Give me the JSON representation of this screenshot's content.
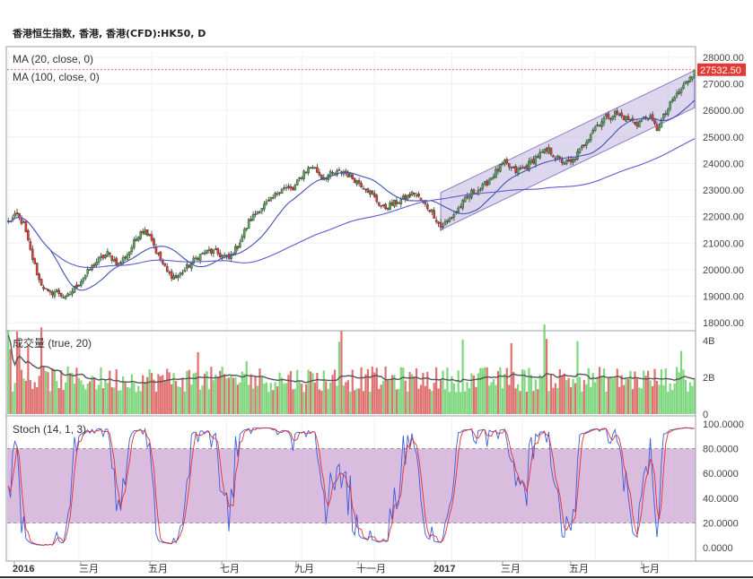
{
  "title": "香港恒生指数, 香港, 香港(CFD):HK50, D",
  "colors": {
    "up": "#4caf50",
    "down": "#e53935",
    "vol_up": "#7ed67e",
    "vol_down": "#e07070",
    "ma20": "#3f51b5",
    "ma100": "#5c5ccf",
    "channel": "#b3a6d9",
    "channel_edge": "#8e7cc3",
    "stoch_k": "#3b5bdb",
    "stoch_d": "#e03131",
    "stoch_band": "#d4b0d9",
    "vol_ma": "#555555",
    "price_tag_bg": "#e53935",
    "price_line": "#e53935"
  },
  "indicators": {
    "ma20": "MA (20, close, 0)",
    "ma100": "MA (100, close, 0)",
    "volume": "成交量 (true, 20)",
    "stoch": "Stoch (14, 1, 3)"
  },
  "last_price": "27532.50",
  "price_axis": [
    "28000.00",
    "27000.00",
    "26000.00",
    "25000.00",
    "24000.00",
    "23000.00",
    "22000.00",
    "21000.00",
    "20000.00",
    "19000.00",
    "18000.00"
  ],
  "volume_axis": [
    "4B",
    "2B",
    "0"
  ],
  "stoch_axis": [
    "100.0000",
    "80.0000",
    "60.0000",
    "40.0000",
    "20.0000",
    "0.0000"
  ],
  "x_axis": [
    {
      "label": "2016",
      "bold": true
    },
    {
      "label": "三月",
      "bold": false
    },
    {
      "label": "五月",
      "bold": false
    },
    {
      "label": "七月",
      "bold": false
    },
    {
      "label": "九月",
      "bold": false
    },
    {
      "label": "十一月",
      "bold": false
    },
    {
      "label": "2017",
      "bold": true
    },
    {
      "label": "三月",
      "bold": false
    },
    {
      "label": "五月",
      "bold": false
    },
    {
      "label": "七月",
      "bold": false
    }
  ],
  "chart_data": [
    {
      "type": "candlestick",
      "ylim": [
        17700,
        28200
      ],
      "close_anchors": [
        [
          0,
          21800
        ],
        [
          4,
          22050
        ],
        [
          7,
          21700
        ],
        [
          10,
          20700
        ],
        [
          14,
          19600
        ],
        [
          18,
          19100
        ],
        [
          22,
          19200
        ],
        [
          26,
          18900
        ],
        [
          30,
          19300
        ],
        [
          35,
          19800
        ],
        [
          40,
          20300
        ],
        [
          45,
          20600
        ],
        [
          50,
          20200
        ],
        [
          55,
          20700
        ],
        [
          60,
          21500
        ],
        [
          64,
          21400
        ],
        [
          67,
          20700
        ],
        [
          72,
          19900
        ],
        [
          76,
          19700
        ],
        [
          80,
          20000
        ],
        [
          86,
          20500
        ],
        [
          91,
          20700
        ],
        [
          95,
          20600
        ],
        [
          100,
          20400
        ],
        [
          104,
          20900
        ],
        [
          109,
          21800
        ],
        [
          114,
          22300
        ],
        [
          119,
          22600
        ],
        [
          124,
          23100
        ],
        [
          129,
          23000
        ],
        [
          134,
          23700
        ],
        [
          138,
          23900
        ],
        [
          142,
          23500
        ],
        [
          147,
          23600
        ],
        [
          152,
          23700
        ],
        [
          157,
          23400
        ],
        [
          162,
          23100
        ],
        [
          166,
          22700
        ],
        [
          170,
          22300
        ],
        [
          175,
          22500
        ],
        [
          180,
          22700
        ],
        [
          184,
          22900
        ],
        [
          188,
          22500
        ],
        [
          192,
          22200
        ],
        [
          196,
          21600
        ],
        [
          200,
          21900
        ],
        [
          205,
          22400
        ],
        [
          210,
          22900
        ],
        [
          215,
          23100
        ],
        [
          220,
          23600
        ],
        [
          225,
          24000
        ],
        [
          230,
          23700
        ],
        [
          235,
          23900
        ],
        [
          240,
          24300
        ],
        [
          245,
          24500
        ],
        [
          250,
          24100
        ],
        [
          255,
          24000
        ],
        [
          260,
          24600
        ],
        [
          265,
          25300
        ],
        [
          270,
          25700
        ],
        [
          275,
          25900
        ],
        [
          280,
          25700
        ],
        [
          285,
          25500
        ],
        [
          290,
          25800
        ],
        [
          294,
          25300
        ],
        [
          298,
          25900
        ],
        [
          302,
          26500
        ],
        [
          306,
          26900
        ],
        [
          309,
          27300
        ],
        [
          311,
          27500
        ]
      ],
      "ma20": "MA (20, close, 0)",
      "ma100": "MA (100, close, 0)",
      "channel": {
        "lower_start": [
          196,
          21500
        ],
        "lower_end": [
          311,
          26100
        ],
        "upper_start": [
          196,
          22900
        ],
        "upper_end": [
          311,
          27500
        ]
      },
      "last_value": 27532.5
    },
    {
      "type": "bar",
      "name": "成交量",
      "ylim": [
        0,
        4.4
      ],
      "unit": "B",
      "note_values": "volume per day in billions"
    },
    {
      "type": "line",
      "name": "Stoch",
      "ylim": [
        -10,
        105
      ],
      "bands": [
        20,
        80
      ]
    }
  ]
}
